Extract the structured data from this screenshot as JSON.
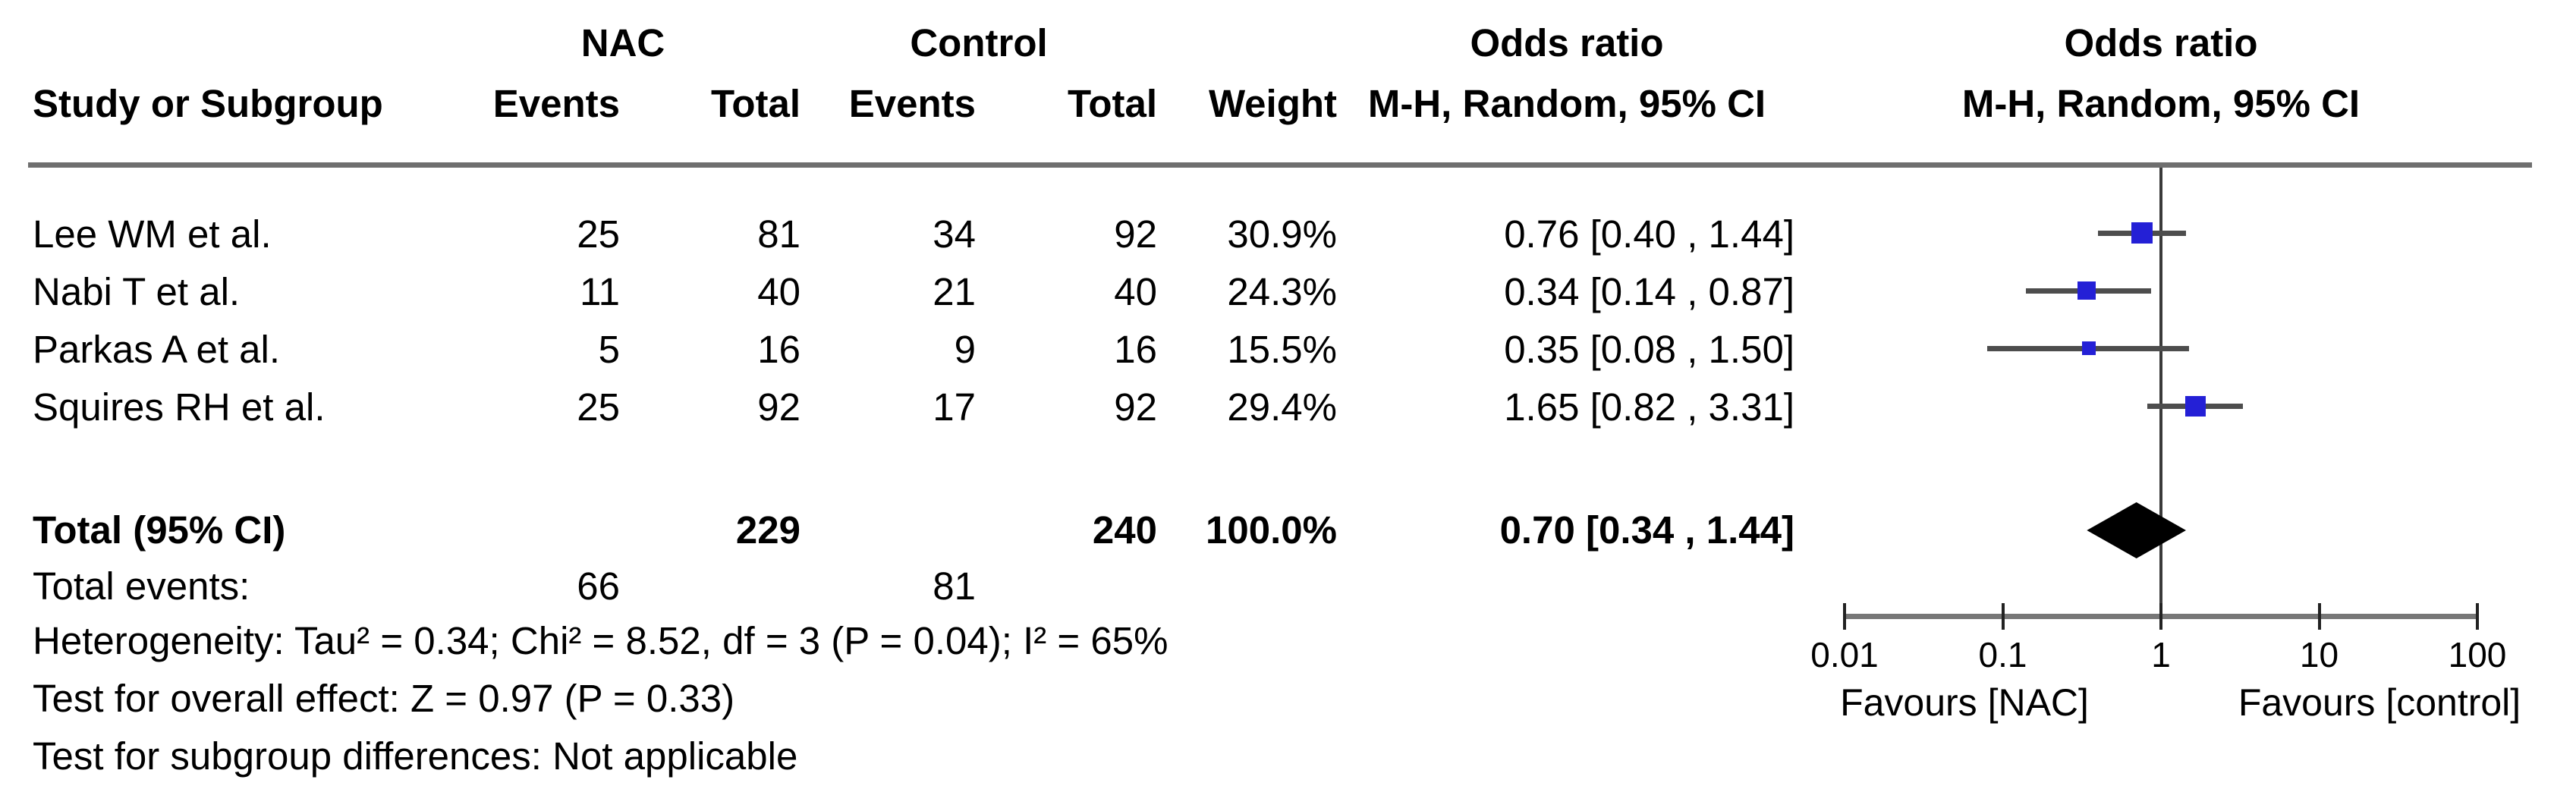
{
  "table": {
    "headers": {
      "group_nac": "NAC",
      "group_control": "Control",
      "study": "Study or Subgroup",
      "events": "Events",
      "total": "Total",
      "events2": "Events",
      "total2": "Total",
      "weight": "Weight",
      "or_title": "Odds ratio",
      "or_sub": "M-H, Random, 95% CI",
      "plot_title": "Odds ratio",
      "plot_sub": "M-H, Random, 95% CI"
    },
    "studies": [
      {
        "name": "Lee WM et al.",
        "nac_events": "25",
        "nac_total": "81",
        "control_events": "34",
        "control_total": "92",
        "weight": "30.9%",
        "or_ci": "0.76 [0.40 , 1.44]"
      },
      {
        "name": "Nabi T et al.",
        "nac_events": "11",
        "nac_total": "40",
        "control_events": "21",
        "control_total": "40",
        "weight": "24.3%",
        "or_ci": "0.34 [0.14 , 0.87]"
      },
      {
        "name": "Parkas A et al.",
        "nac_events": "5",
        "nac_total": "16",
        "control_events": "9",
        "control_total": "16",
        "weight": "15.5%",
        "or_ci": "0.35 [0.08 , 1.50]"
      },
      {
        "name": "Squires RH et al.",
        "nac_events": "25",
        "nac_total": "92",
        "control_events": "17",
        "control_total": "92",
        "weight": "29.4%",
        "or_ci": "1.65 [0.82 , 3.31]"
      }
    ],
    "total_row": {
      "label": "Total (95% CI)",
      "nac_total": "229",
      "control_total": "240",
      "weight": "100.0%",
      "or_ci": "0.70 [0.34 , 1.44]"
    },
    "total_events": {
      "label": "Total events:",
      "nac": "66",
      "control": "81"
    },
    "footnotes": {
      "heterogeneity": "Heterogeneity: Tau² = 0.34; Chi² = 8.52, df = 3 (P = 0.04); I² = 65%",
      "overall_effect": "Test for overall effect: Z = 0.97 (P = 0.33)",
      "subgroup": "Test for subgroup differences: Not applicable"
    }
  },
  "chart_data": {
    "type": "forest",
    "effect_measure": "Odds ratio",
    "method": "M-H, Random, 95% CI",
    "x_scale": "log10",
    "xlim": [
      0.01,
      100
    ],
    "x_ticks": [
      0.01,
      0.1,
      1,
      10,
      100
    ],
    "x_tick_labels": [
      "0.01",
      "0.1",
      "1",
      "10",
      "100"
    ],
    "null_value": 1,
    "studies": [
      {
        "label": "Lee WM et al.",
        "or": 0.76,
        "ci_low": 0.4,
        "ci_high": 1.44,
        "weight_pct": 30.9
      },
      {
        "label": "Nabi T et al.",
        "or": 0.34,
        "ci_low": 0.14,
        "ci_high": 0.87,
        "weight_pct": 24.3
      },
      {
        "label": "Parkas A et al.",
        "or": 0.35,
        "ci_low": 0.08,
        "ci_high": 1.5,
        "weight_pct": 15.5
      },
      {
        "label": "Squires RH et al.",
        "or": 1.65,
        "ci_low": 0.82,
        "ci_high": 3.31,
        "weight_pct": 29.4
      }
    ],
    "total": {
      "label": "Total (95% CI)",
      "or": 0.7,
      "ci_low": 0.34,
      "ci_high": 1.44,
      "weight_pct": 100.0
    },
    "favours_left": "Favours [NAC]",
    "favours_right": "Favours [control]",
    "colors": {
      "marker": "#2420d6",
      "ci_line": "#4d4d4d",
      "summary_diamond": "#000000",
      "axis": "#777777",
      "tick": "#222222",
      "null_line": "#3a3a3a",
      "divider": "#6f6f6f"
    }
  }
}
